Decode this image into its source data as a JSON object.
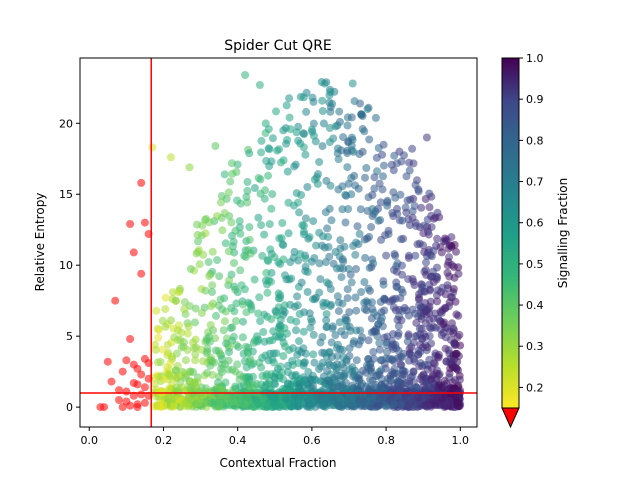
{
  "chart_data": {
    "type": "scatter",
    "title": "Spider Cut QRE",
    "xlabel": "Contextual Fraction",
    "ylabel": "Relative Entropy",
    "xlim": [
      -0.025,
      1.045
    ],
    "ylim": [
      -1.4,
      24.6
    ],
    "xticks": [
      "0.0",
      "0.2",
      "0.4",
      "0.6",
      "0.8",
      "1.0"
    ],
    "yticks": [
      "0",
      "5",
      "10",
      "15",
      "20"
    ],
    "xtick_values": [
      0,
      0.2,
      0.4,
      0.6,
      0.8,
      1.0
    ],
    "ytick_values": [
      0,
      5,
      10,
      15,
      20
    ],
    "cut_lines": {
      "vertical_x": 0.167,
      "horizontal_y": 1.0,
      "color": "#ff0000"
    },
    "below_cut_color": "#ff0000",
    "colormap": "viridis",
    "point_alpha": 0.55,
    "colorbar": {
      "label": "Signalling Fraction",
      "range": [
        0.15,
        1.0
      ],
      "ticks": [
        "0.2",
        "0.3",
        "0.4",
        "0.5",
        "0.6",
        "0.7",
        "0.8",
        "0.9",
        "1.0"
      ],
      "tick_values": [
        0.2,
        0.3,
        0.4,
        0.5,
        0.6,
        0.7,
        0.8,
        0.9,
        1.0
      ],
      "under_color": "#ff0000"
    },
    "red_points": [
      [
        0.03,
        0.0
      ],
      [
        0.04,
        0.0
      ],
      [
        0.05,
        3.2
      ],
      [
        0.06,
        1.8
      ],
      [
        0.07,
        7.5
      ],
      [
        0.08,
        1.2
      ],
      [
        0.09,
        0.0
      ],
      [
        0.09,
        2.5
      ],
      [
        0.1,
        0.4
      ],
      [
        0.1,
        3.3
      ],
      [
        0.11,
        12.9
      ],
      [
        0.11,
        4.8
      ],
      [
        0.11,
        0.1
      ],
      [
        0.12,
        1.7
      ],
      [
        0.12,
        10.9
      ],
      [
        0.12,
        0.8
      ],
      [
        0.13,
        2.7
      ],
      [
        0.13,
        0.2
      ],
      [
        0.13,
        1.6
      ],
      [
        0.14,
        15.8
      ],
      [
        0.14,
        9.4
      ],
      [
        0.14,
        2.3
      ],
      [
        0.14,
        0.9
      ],
      [
        0.15,
        13.0
      ],
      [
        0.15,
        3.4
      ],
      [
        0.15,
        1.4
      ],
      [
        0.15,
        0.3
      ],
      [
        0.16,
        12.2
      ],
      [
        0.16,
        3.1
      ],
      [
        0.16,
        0.8
      ],
      [
        0.16,
        2.0
      ],
      [
        0.1,
        1.1
      ],
      [
        0.12,
        3.0
      ],
      [
        0.08,
        0.5
      ],
      [
        0.13,
        0.0
      ]
    ],
    "point_count": 2600,
    "sample_points_xy_sf": [
      [
        0.42,
        23.4,
        0.45
      ],
      [
        0.71,
        22.8,
        0.58
      ],
      [
        0.65,
        22.2,
        0.55
      ],
      [
        0.46,
        22.7,
        0.47
      ],
      [
        0.75,
        21.0,
        0.62
      ],
      [
        0.54,
        20.4,
        0.5
      ],
      [
        0.91,
        19.0,
        0.86
      ],
      [
        0.87,
        18.2,
        0.82
      ],
      [
        0.22,
        17.6,
        0.24
      ],
      [
        0.27,
        16.9,
        0.3
      ],
      [
        0.34,
        18.4,
        0.37
      ],
      [
        0.17,
        18.3,
        0.2
      ]
    ]
  }
}
